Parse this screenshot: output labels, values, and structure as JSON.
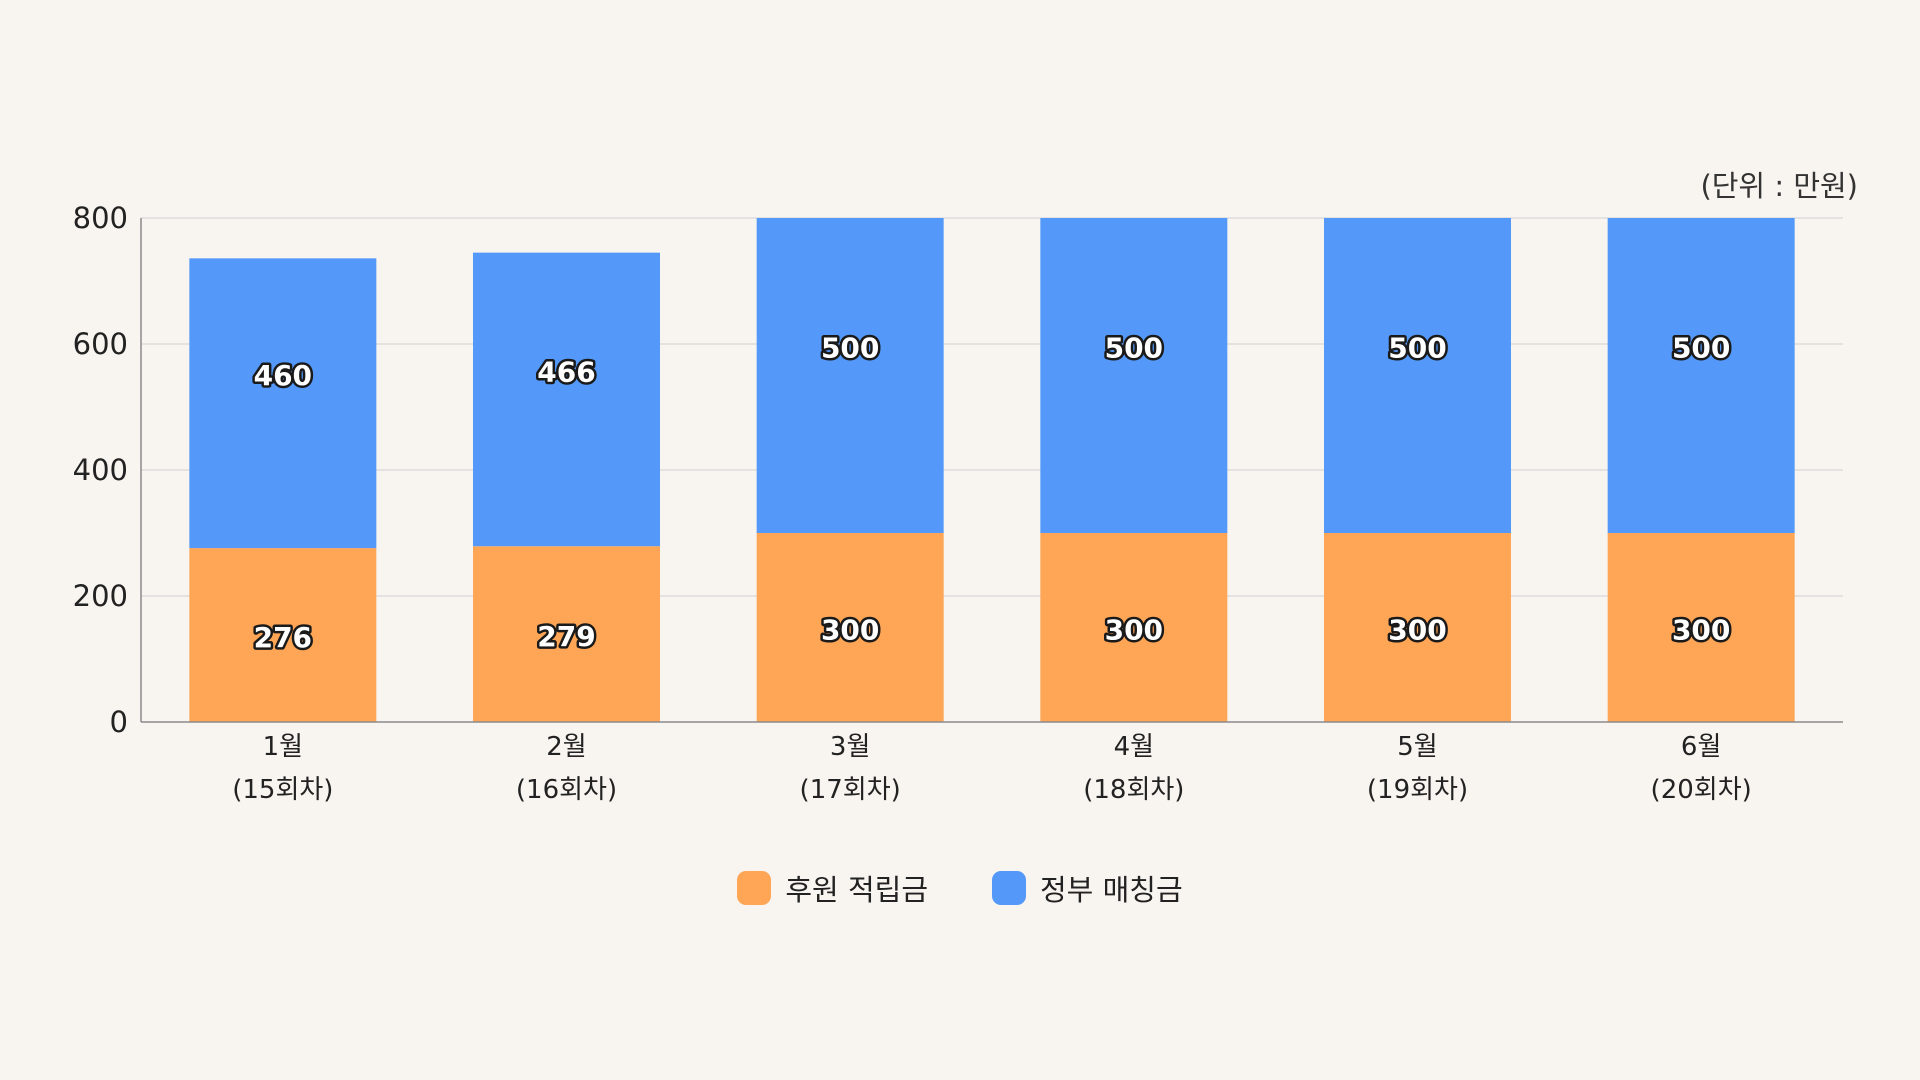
{
  "chart_data": {
    "type": "bar",
    "stacked": true,
    "unit_label": "(단위 : 만원)",
    "categories": [
      [
        "1월",
        "(15회차)"
      ],
      [
        "2월",
        "(16회차)"
      ],
      [
        "3월",
        "(17회차)"
      ],
      [
        "4월",
        "(18회차)"
      ],
      [
        "5월",
        "(19회차)"
      ],
      [
        "6월",
        "(20회차)"
      ]
    ],
    "series": [
      {
        "name": "후원 적립금",
        "color": "#ffa556",
        "values": [
          276,
          279,
          300,
          300,
          300,
          300
        ],
        "labels": [
          "276",
          "279",
          "300",
          "300",
          "300",
          "300"
        ]
      },
      {
        "name": "정부 매칭금",
        "color": "#5499f9",
        "values": [
          460,
          466,
          500,
          500,
          500,
          500
        ],
        "labels": [
          "460",
          "466",
          "500",
          "500",
          "500",
          "500"
        ]
      }
    ],
    "ylim": [
      0,
      800
    ],
    "yticks": [
      "0",
      "200",
      "400",
      "600",
      "800"
    ],
    "grid": true,
    "legend_position": "bottom-center"
  }
}
